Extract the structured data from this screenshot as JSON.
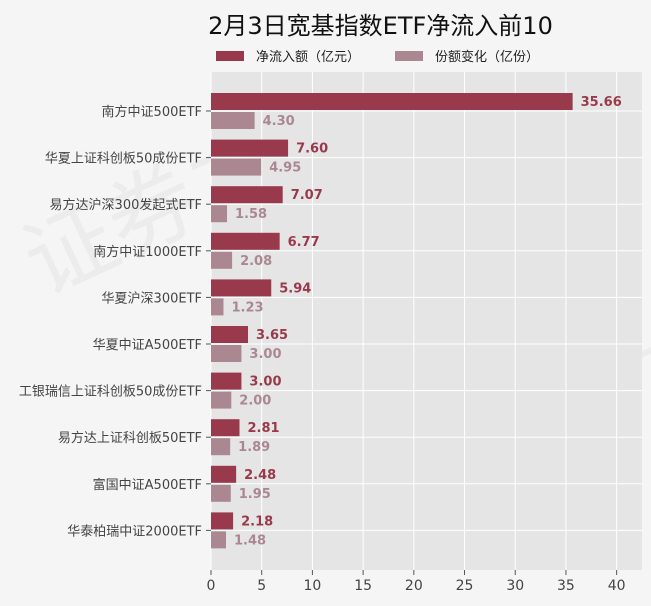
{
  "watermark": "证券之星",
  "chart_data": {
    "type": "bar",
    "orientation": "horizontal",
    "title": "2月3日宽基指数ETF净流入前10",
    "xlabel": "",
    "ylabel": "",
    "xlim": [
      0,
      42.5
    ],
    "xticks": [
      0,
      5,
      10,
      15,
      20,
      25,
      30,
      35,
      40
    ],
    "grid": true,
    "legend_position": "top",
    "categories": [
      "南方中证500ETF",
      "华夏上证科创板50成份ETF",
      "易方达沪深300发起式ETF",
      "南方中证1000ETF",
      "华夏沪深300ETF",
      "华夏中证A500ETF",
      "工银瑞信上证科创板50成份ETF",
      "易方达上证科创板50ETF",
      "富国中证A500ETF",
      "华泰柏瑞中证2000ETF"
    ],
    "series": [
      {
        "name": "净流入额（亿元）",
        "color": "#983a4b",
        "values": [
          35.66,
          7.6,
          7.07,
          6.77,
          5.94,
          3.65,
          3.0,
          2.81,
          2.48,
          2.18
        ],
        "labels": [
          "35.66",
          "7.60",
          "7.07",
          "6.77",
          "5.94",
          "3.65",
          "3.00",
          "2.81",
          "2.48",
          "2.18"
        ]
      },
      {
        "name": "份额变化（亿份）",
        "color": "#ab8891",
        "values": [
          4.3,
          4.95,
          1.58,
          2.08,
          1.23,
          3.0,
          2.0,
          1.89,
          1.95,
          1.48
        ],
        "labels": [
          "4.30",
          "4.95",
          "1.58",
          "2.08",
          "1.23",
          "3.00",
          "2.00",
          "1.89",
          "1.95",
          "1.48"
        ]
      }
    ]
  }
}
